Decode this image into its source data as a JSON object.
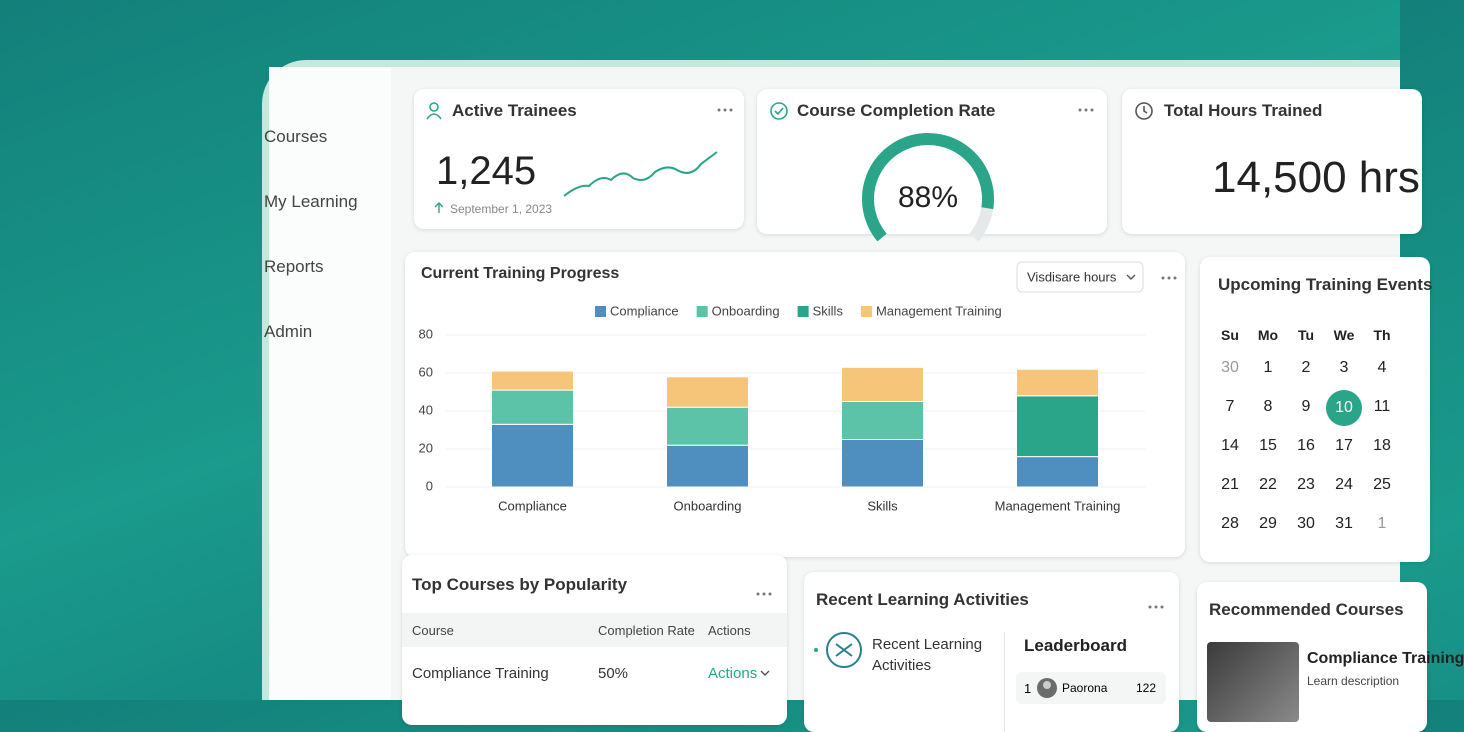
{
  "sidebar": {
    "items": [
      "Courses",
      "My Learning",
      "Reports",
      "Admin"
    ]
  },
  "cards": {
    "active_trainees": {
      "title": "Active Trainees",
      "value": "1,245",
      "date": "September 1, 2023"
    },
    "completion": {
      "title": "Course Completion Rate",
      "value": 88,
      "label": "88%"
    },
    "hours": {
      "title": "Total Hours Trained",
      "value": "14,500 hrs"
    }
  },
  "chart_data": {
    "type": "bar",
    "stacked": true,
    "title": "Current Training Progress",
    "dropdown": "Visdisare hours",
    "categories": [
      "Compliance",
      "Onboarding",
      "Skills",
      "Management Training"
    ],
    "series": [
      {
        "name": "Compliance",
        "color": "#4f8fbf",
        "values": [
          33,
          22,
          25,
          16
        ]
      },
      {
        "name": "Onboarding",
        "color": "#5cc2a8",
        "values": [
          18,
          20,
          20,
          null
        ]
      },
      {
        "name": "Skills",
        "color": "#2aa58a",
        "values": [
          null,
          null,
          null,
          32
        ]
      },
      {
        "name": "Management Training",
        "color": "#f6c57a",
        "values": [
          10,
          16,
          18,
          14
        ]
      }
    ],
    "ylim": [
      0,
      80
    ],
    "yticks": [
      0,
      20,
      40,
      60,
      80
    ],
    "grid": true
  },
  "calendar": {
    "title": "Upcoming Training Events",
    "weekdays": [
      "Su",
      "Mo",
      "Tu",
      "We",
      "Th"
    ],
    "rows": [
      [
        30,
        1,
        2,
        3,
        4
      ],
      [
        7,
        8,
        9,
        10,
        11
      ],
      [
        14,
        15,
        16,
        17,
        18
      ],
      [
        21,
        22,
        23,
        24,
        25
      ],
      [
        28,
        29,
        30,
        31,
        1
      ]
    ]
  },
  "top_courses": {
    "title": "Top Courses by Popularity",
    "header": [
      "Course",
      "Completion Rate",
      "Actions"
    ],
    "rows": [
      [
        "Compliance Training",
        "50%",
        "Actions"
      ]
    ]
  },
  "recent": {
    "title": "Recent Learning Activities",
    "item": "Recent Learning Activities",
    "leaderboard": {
      "title": "Leaderboard",
      "rows": [
        {
          "rank": 1,
          "name": "Paorona",
          "points": 122
        }
      ]
    }
  },
  "recommended": {
    "title": "Recommended Courses",
    "course": "Compliance Training",
    "description": "Learn description"
  }
}
